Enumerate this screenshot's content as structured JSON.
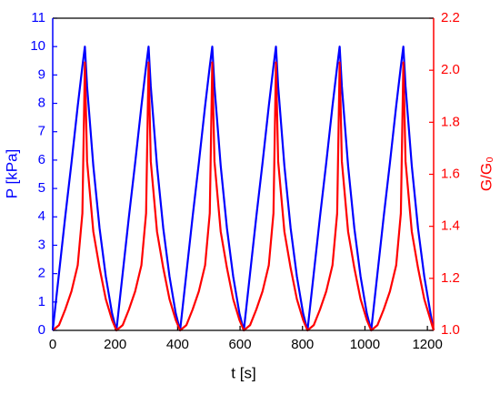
{
  "chart_data": {
    "type": "line",
    "xlabel": "t [s]",
    "ylabel": "P [kPa]",
    "y2label": "G/G₀",
    "x": [
      0,
      20,
      40,
      60,
      80,
      95,
      103,
      110,
      130,
      150,
      170,
      190,
      204,
      224,
      244,
      264,
      284,
      299,
      307,
      314,
      334,
      354,
      374,
      394,
      408,
      428,
      448,
      468,
      488,
      503,
      511,
      518,
      538,
      558,
      578,
      598,
      612,
      632,
      652,
      672,
      692,
      707,
      715,
      722,
      742,
      762,
      782,
      802,
      816,
      836,
      856,
      876,
      896,
      911,
      919,
      926,
      946,
      966,
      986,
      1006,
      1020,
      1040,
      1060,
      1080,
      1100,
      1115,
      1123,
      1130,
      1150,
      1170,
      1190,
      1210,
      1220
    ],
    "series": [
      {
        "name": "P [kPa]",
        "color": "#0000ff",
        "axis": "y",
        "values": [
          0,
          2.0,
          4.0,
          5.9,
          7.9,
          9.3,
          10,
          8.6,
          5.8,
          3.6,
          1.9,
          0.6,
          0,
          2.0,
          4.0,
          5.9,
          7.9,
          9.3,
          10,
          8.6,
          5.8,
          3.6,
          1.9,
          0.6,
          0,
          2.0,
          4.0,
          5.9,
          7.9,
          9.3,
          10,
          8.6,
          5.8,
          3.6,
          1.9,
          0.6,
          0,
          2.0,
          4.0,
          5.9,
          7.9,
          9.3,
          10,
          8.6,
          5.8,
          3.6,
          1.9,
          0.6,
          0,
          2.0,
          4.0,
          5.9,
          7.9,
          9.3,
          10,
          8.6,
          5.8,
          3.6,
          1.9,
          0.6,
          0,
          2.0,
          4.0,
          5.9,
          7.9,
          9.3,
          10,
          8.6,
          5.8,
          3.6,
          1.9,
          0.6,
          0
        ]
      },
      {
        "name": "G/G₀",
        "color": "#ff0000",
        "axis": "y2",
        "values": [
          1.0,
          1.02,
          1.08,
          1.15,
          1.25,
          1.45,
          2.03,
          1.65,
          1.38,
          1.24,
          1.12,
          1.04,
          1.0,
          1.02,
          1.08,
          1.15,
          1.25,
          1.45,
          2.03,
          1.65,
          1.38,
          1.24,
          1.12,
          1.04,
          1.0,
          1.02,
          1.08,
          1.15,
          1.25,
          1.45,
          2.03,
          1.65,
          1.38,
          1.24,
          1.12,
          1.04,
          1.0,
          1.02,
          1.08,
          1.15,
          1.25,
          1.45,
          2.03,
          1.65,
          1.38,
          1.24,
          1.12,
          1.04,
          1.0,
          1.02,
          1.08,
          1.15,
          1.25,
          1.45,
          2.03,
          1.65,
          1.38,
          1.24,
          1.12,
          1.04,
          1.0,
          1.02,
          1.08,
          1.15,
          1.25,
          1.45,
          2.03,
          1.65,
          1.38,
          1.24,
          1.12,
          1.04,
          1.0
        ]
      }
    ],
    "xlim": [
      0,
      1220
    ],
    "xticks": [
      0,
      200,
      400,
      600,
      800,
      1000,
      1200
    ],
    "ylim": [
      0,
      11
    ],
    "yticks": [
      0,
      1,
      2,
      3,
      4,
      5,
      6,
      7,
      8,
      9,
      10,
      11
    ],
    "y2lim": [
      1.0,
      2.2
    ],
    "y2ticks": [
      {
        "value": 1.0,
        "label": "1.0"
      },
      {
        "value": 1.2,
        "label": "1.2"
      },
      {
        "value": 1.4,
        "label": "1.4"
      },
      {
        "value": 1.6,
        "label": "1.6"
      },
      {
        "value": 1.8,
        "label": "1.8"
      },
      {
        "value": 2.0,
        "label": "2.0"
      },
      {
        "value": 2.2,
        "label": "2.2"
      }
    ]
  }
}
